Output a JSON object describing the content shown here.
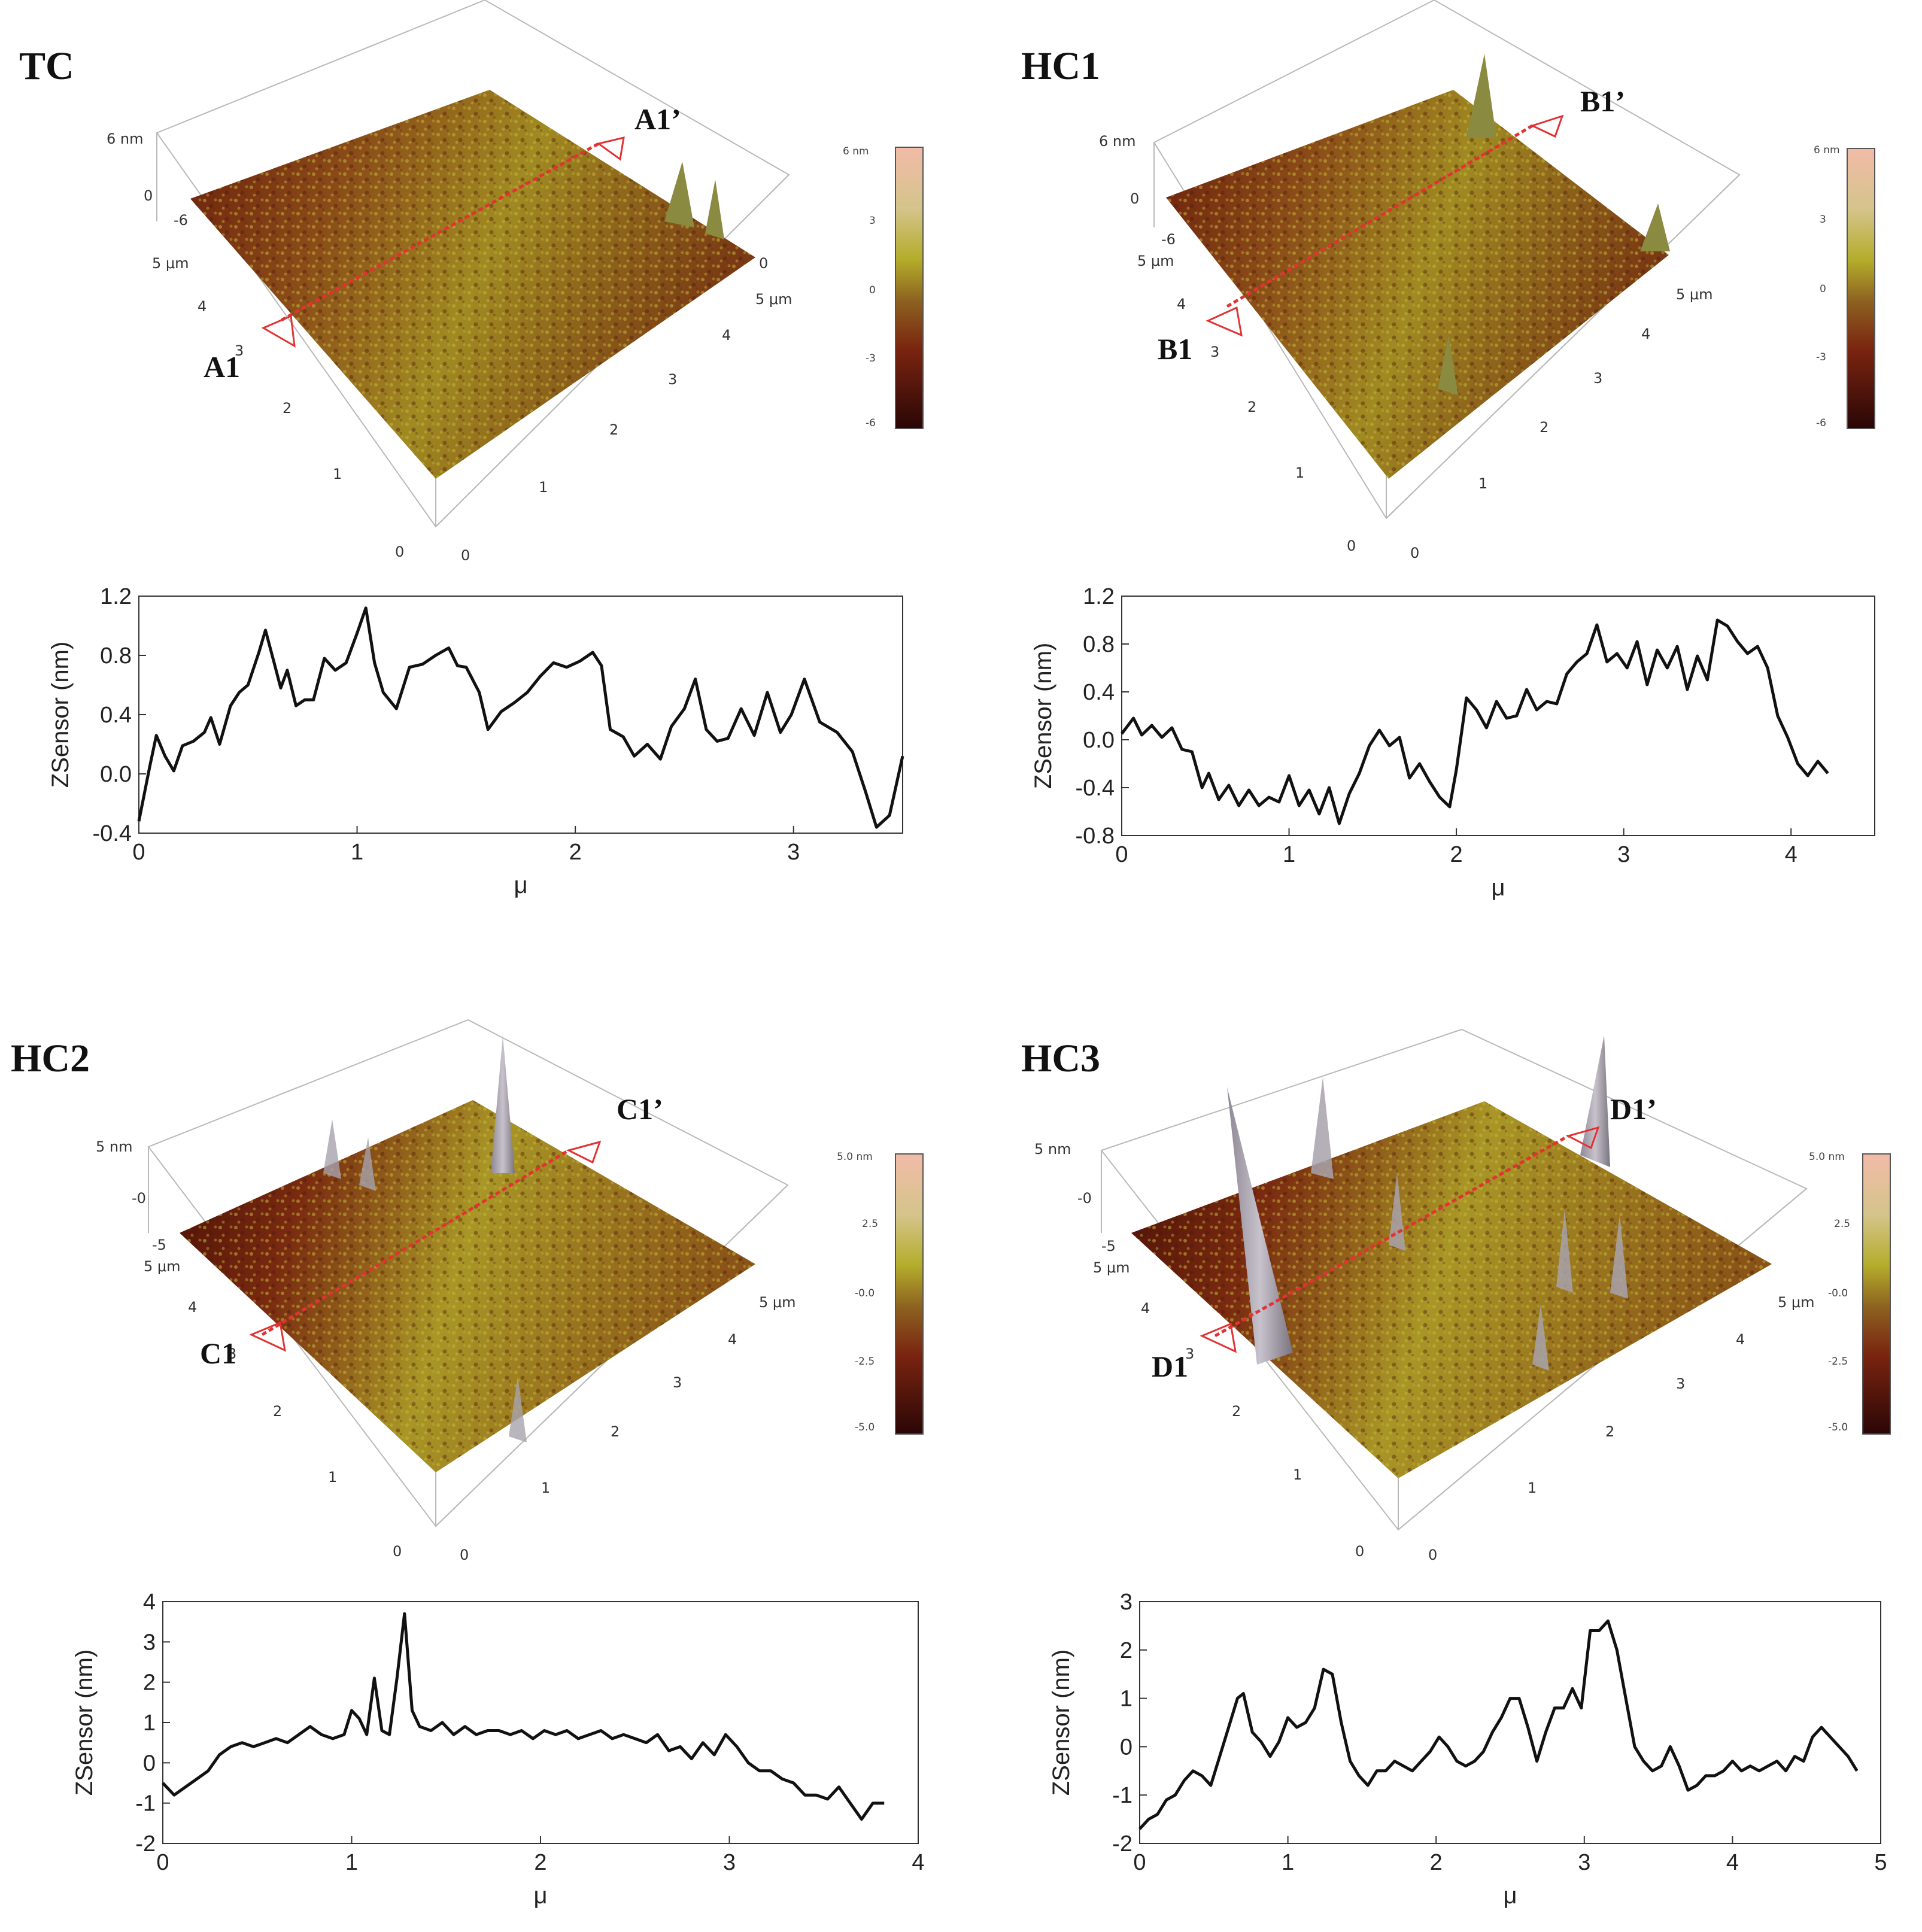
{
  "colors": {
    "profile_line": "#111111",
    "section_marker": "#e23232",
    "surface_dark": "#4a1008",
    "surface_mid": "#8c4a1a",
    "surface_light": "#b0a028",
    "spike": "#a8a2ac"
  },
  "panels": [
    {
      "label": "TC",
      "section_start": "A1",
      "section_end": "A1’",
      "z_ticks": [
        "6 nm",
        "0",
        "-6"
      ],
      "x_ticks": [
        "0",
        "1",
        "2",
        "3",
        "4",
        "5 μm"
      ],
      "y_ticks": [
        "0",
        "1",
        "2",
        "3",
        "4",
        "5 μm"
      ],
      "colorbar_ticks": [
        "6 nm",
        "3",
        "0",
        "-3",
        "-6"
      ]
    },
    {
      "label": "HC1",
      "section_start": "B1",
      "section_end": "B1’",
      "z_ticks": [
        "6 nm",
        "0",
        "-6"
      ],
      "x_ticks": [
        "0",
        "1",
        "2",
        "3",
        "4",
        "5 μm"
      ],
      "y_ticks": [
        "0",
        "1",
        "2",
        "3",
        "4",
        "5 μm"
      ],
      "colorbar_ticks": [
        "6 nm",
        "3",
        "0",
        "-3",
        "-6"
      ]
    },
    {
      "label": "HC2",
      "section_start": "C1",
      "section_end": "C1’",
      "z_ticks": [
        "5 nm",
        "-0",
        "-5"
      ],
      "x_ticks": [
        "0",
        "1",
        "2",
        "3",
        "4",
        "5 μm"
      ],
      "y_ticks": [
        "0",
        "1",
        "2",
        "3",
        "4",
        "5 μm"
      ],
      "colorbar_ticks": [
        "5.0 nm",
        "2.5",
        "-0.0",
        "-2.5",
        "-5.0"
      ]
    },
    {
      "label": "HC3",
      "section_start": "D1",
      "section_end": "D1’",
      "z_ticks": [
        "5 nm",
        "-0",
        "-5"
      ],
      "x_ticks": [
        "0",
        "1",
        "2",
        "3",
        "4",
        "5 μm"
      ],
      "y_ticks": [
        "0",
        "1",
        "2",
        "3",
        "4",
        "5 μm"
      ],
      "colorbar_ticks": [
        "5.0 nm",
        "2.5",
        "-0.0",
        "-2.5",
        "-5.0"
      ]
    }
  ],
  "chart_data": [
    {
      "type": "line",
      "title": "TC",
      "xlabel": "μ",
      "ylabel": "ZSensor (nm)",
      "xlim": [
        0,
        3.5
      ],
      "ylim": [
        -0.4,
        1.2
      ],
      "xticks": [
        0,
        1,
        2,
        3
      ],
      "yticks": [
        -0.4,
        0.0,
        0.4,
        0.8,
        1.2
      ],
      "ytick_labels": [
        "-0.4",
        "0.0",
        "0.4",
        "0.8",
        "1.2"
      ],
      "x": [
        0,
        0.05,
        0.08,
        0.12,
        0.16,
        0.2,
        0.25,
        0.3,
        0.33,
        0.37,
        0.42,
        0.46,
        0.5,
        0.55,
        0.58,
        0.62,
        0.65,
        0.68,
        0.72,
        0.76,
        0.8,
        0.85,
        0.9,
        0.95,
        1.0,
        1.04,
        1.08,
        1.12,
        1.18,
        1.24,
        1.3,
        1.36,
        1.42,
        1.46,
        1.5,
        1.56,
        1.6,
        1.66,
        1.72,
        1.78,
        1.84,
        1.9,
        1.96,
        2.02,
        2.08,
        2.12,
        2.16,
        2.22,
        2.27,
        2.33,
        2.39,
        2.44,
        2.5,
        2.55,
        2.6,
        2.65,
        2.7,
        2.76,
        2.82,
        2.88,
        2.94,
        2.99,
        3.05,
        3.12,
        3.2,
        3.27,
        3.33,
        3.38,
        3.44,
        3.5
      ],
      "y": [
        -0.32,
        0.05,
        0.26,
        0.12,
        0.02,
        0.19,
        0.22,
        0.28,
        0.38,
        0.2,
        0.46,
        0.55,
        0.6,
        0.82,
        0.97,
        0.75,
        0.58,
        0.7,
        0.46,
        0.5,
        0.5,
        0.78,
        0.7,
        0.75,
        0.95,
        1.12,
        0.75,
        0.55,
        0.44,
        0.72,
        0.74,
        0.8,
        0.85,
        0.73,
        0.72,
        0.55,
        0.3,
        0.42,
        0.48,
        0.55,
        0.66,
        0.75,
        0.72,
        0.76,
        0.82,
        0.73,
        0.3,
        0.25,
        0.12,
        0.2,
        0.1,
        0.32,
        0.44,
        0.64,
        0.3,
        0.22,
        0.24,
        0.44,
        0.26,
        0.55,
        0.28,
        0.4,
        0.64,
        0.35,
        0.28,
        0.15,
        -0.12,
        -0.36,
        -0.28,
        0.12
      ]
    },
    {
      "type": "line",
      "title": "HC1",
      "xlabel": "μ",
      "ylabel": "ZSensor (nm)",
      "xlim": [
        0,
        4.5
      ],
      "ylim": [
        -0.8,
        1.2
      ],
      "xticks": [
        0,
        1,
        2,
        3,
        4
      ],
      "yticks": [
        -0.8,
        -0.4,
        0.0,
        0.4,
        0.8,
        1.2
      ],
      "ytick_labels": [
        "-0.8",
        "-0.4",
        "0.0",
        "0.4",
        "0.8",
        "1.2"
      ],
      "x": [
        0,
        0.07,
        0.12,
        0.18,
        0.24,
        0.3,
        0.36,
        0.42,
        0.48,
        0.52,
        0.58,
        0.64,
        0.7,
        0.76,
        0.82,
        0.88,
        0.94,
        1.0,
        1.06,
        1.12,
        1.18,
        1.24,
        1.3,
        1.36,
        1.42,
        1.48,
        1.54,
        1.6,
        1.66,
        1.72,
        1.78,
        1.84,
        1.9,
        1.96,
        2.0,
        2.06,
        2.12,
        2.18,
        2.24,
        2.3,
        2.36,
        2.42,
        2.48,
        2.54,
        2.6,
        2.66,
        2.72,
        2.78,
        2.84,
        2.9,
        2.96,
        3.02,
        3.08,
        3.14,
        3.2,
        3.26,
        3.32,
        3.38,
        3.44,
        3.5,
        3.56,
        3.62,
        3.68,
        3.74,
        3.8,
        3.86,
        3.92,
        3.98,
        4.04,
        4.1,
        4.16,
        4.22
      ],
      "y": [
        0.05,
        0.18,
        0.04,
        0.12,
        0.02,
        0.1,
        -0.08,
        -0.1,
        -0.4,
        -0.28,
        -0.5,
        -0.38,
        -0.55,
        -0.42,
        -0.55,
        -0.48,
        -0.52,
        -0.3,
        -0.55,
        -0.42,
        -0.62,
        -0.4,
        -0.7,
        -0.45,
        -0.28,
        -0.05,
        0.08,
        -0.05,
        0.02,
        -0.32,
        -0.2,
        -0.35,
        -0.48,
        -0.56,
        -0.25,
        0.35,
        0.25,
        0.1,
        0.32,
        0.18,
        0.2,
        0.42,
        0.25,
        0.32,
        0.3,
        0.55,
        0.65,
        0.72,
        0.96,
        0.65,
        0.72,
        0.6,
        0.82,
        0.46,
        0.75,
        0.6,
        0.78,
        0.42,
        0.7,
        0.5,
        1.0,
        0.95,
        0.82,
        0.72,
        0.78,
        0.6,
        0.2,
        0.02,
        -0.2,
        -0.3,
        -0.18,
        -0.28
      ]
    },
    {
      "type": "line",
      "title": "HC2",
      "xlabel": "μ",
      "ylabel": "ZSensor (nm)",
      "xlim": [
        0,
        4
      ],
      "ylim": [
        -2,
        4
      ],
      "xticks": [
        0,
        1,
        2,
        3,
        4
      ],
      "yticks": [
        -2,
        -1,
        0,
        1,
        2,
        3,
        4
      ],
      "ytick_labels": [
        "-2",
        "-1",
        "0",
        "1",
        "2",
        "3",
        "4"
      ],
      "x": [
        0,
        0.06,
        0.12,
        0.18,
        0.24,
        0.3,
        0.36,
        0.42,
        0.48,
        0.54,
        0.6,
        0.66,
        0.72,
        0.78,
        0.84,
        0.9,
        0.96,
        1.0,
        1.04,
        1.08,
        1.12,
        1.16,
        1.2,
        1.24,
        1.28,
        1.32,
        1.36,
        1.42,
        1.48,
        1.54,
        1.6,
        1.66,
        1.72,
        1.78,
        1.84,
        1.9,
        1.96,
        2.02,
        2.08,
        2.14,
        2.2,
        2.26,
        2.32,
        2.38,
        2.44,
        2.5,
        2.56,
        2.62,
        2.68,
        2.74,
        2.8,
        2.86,
        2.92,
        2.98,
        3.04,
        3.1,
        3.16,
        3.22,
        3.28,
        3.34,
        3.4,
        3.46,
        3.52,
        3.58,
        3.64,
        3.7,
        3.76,
        3.82
      ],
      "y": [
        -0.5,
        -0.8,
        -0.6,
        -0.4,
        -0.2,
        0.2,
        0.4,
        0.5,
        0.4,
        0.5,
        0.6,
        0.5,
        0.7,
        0.9,
        0.7,
        0.6,
        0.7,
        1.3,
        1.1,
        0.7,
        2.1,
        0.8,
        0.7,
        2.1,
        3.7,
        1.3,
        0.9,
        0.8,
        1.0,
        0.7,
        0.9,
        0.7,
        0.8,
        0.8,
        0.7,
        0.8,
        0.6,
        0.8,
        0.7,
        0.8,
        0.6,
        0.7,
        0.8,
        0.6,
        0.7,
        0.6,
        0.5,
        0.7,
        0.3,
        0.4,
        0.1,
        0.5,
        0.2,
        0.7,
        0.4,
        0.0,
        -0.2,
        -0.2,
        -0.4,
        -0.5,
        -0.8,
        -0.8,
        -0.9,
        -0.6,
        -1.0,
        -1.4,
        -1.0,
        -1.0
      ]
    },
    {
      "type": "line",
      "title": "HC3",
      "xlabel": "μ",
      "ylabel": "ZSensor (nm)",
      "xlim": [
        0,
        5
      ],
      "ylim": [
        -2,
        3
      ],
      "xticks": [
        0,
        1,
        2,
        3,
        4,
        5
      ],
      "yticks": [
        -2,
        -1,
        0,
        1,
        2,
        3
      ],
      "ytick_labels": [
        "-2",
        "-1",
        "0",
        "1",
        "2",
        "3"
      ],
      "x": [
        0,
        0.06,
        0.12,
        0.18,
        0.24,
        0.3,
        0.36,
        0.42,
        0.48,
        0.54,
        0.6,
        0.66,
        0.7,
        0.76,
        0.82,
        0.88,
        0.94,
        1.0,
        1.06,
        1.12,
        1.18,
        1.24,
        1.3,
        1.36,
        1.42,
        1.48,
        1.54,
        1.6,
        1.66,
        1.72,
        1.78,
        1.84,
        1.9,
        1.96,
        2.02,
        2.08,
        2.14,
        2.2,
        2.26,
        2.32,
        2.38,
        2.44,
        2.5,
        2.56,
        2.62,
        2.68,
        2.74,
        2.8,
        2.86,
        2.92,
        2.98,
        3.04,
        3.1,
        3.16,
        3.22,
        3.28,
        3.34,
        3.4,
        3.46,
        3.52,
        3.58,
        3.64,
        3.7,
        3.76,
        3.82,
        3.88,
        3.94,
        4.0,
        4.06,
        4.12,
        4.18,
        4.24,
        4.3,
        4.36,
        4.42,
        4.48,
        4.54,
        4.6,
        4.66,
        4.72,
        4.78,
        4.84
      ],
      "y": [
        -1.7,
        -1.5,
        -1.4,
        -1.1,
        -1.0,
        -0.7,
        -0.5,
        -0.6,
        -0.8,
        -0.2,
        0.4,
        1.0,
        1.1,
        0.3,
        0.1,
        -0.2,
        0.1,
        0.6,
        0.4,
        0.5,
        0.8,
        1.6,
        1.5,
        0.5,
        -0.3,
        -0.6,
        -0.8,
        -0.5,
        -0.5,
        -0.3,
        -0.4,
        -0.5,
        -0.3,
        -0.1,
        0.2,
        0.0,
        -0.3,
        -0.4,
        -0.3,
        -0.1,
        0.3,
        0.6,
        1.0,
        1.0,
        0.4,
        -0.3,
        0.3,
        0.8,
        0.8,
        1.2,
        0.8,
        2.4,
        2.4,
        2.6,
        2.0,
        1.0,
        0.0,
        -0.3,
        -0.5,
        -0.4,
        0.0,
        -0.4,
        -0.9,
        -0.8,
        -0.6,
        -0.6,
        -0.5,
        -0.3,
        -0.5,
        -0.4,
        -0.5,
        -0.4,
        -0.3,
        -0.5,
        -0.2,
        -0.3,
        0.2,
        0.4,
        0.2,
        0.0,
        -0.2,
        -0.5
      ]
    }
  ]
}
